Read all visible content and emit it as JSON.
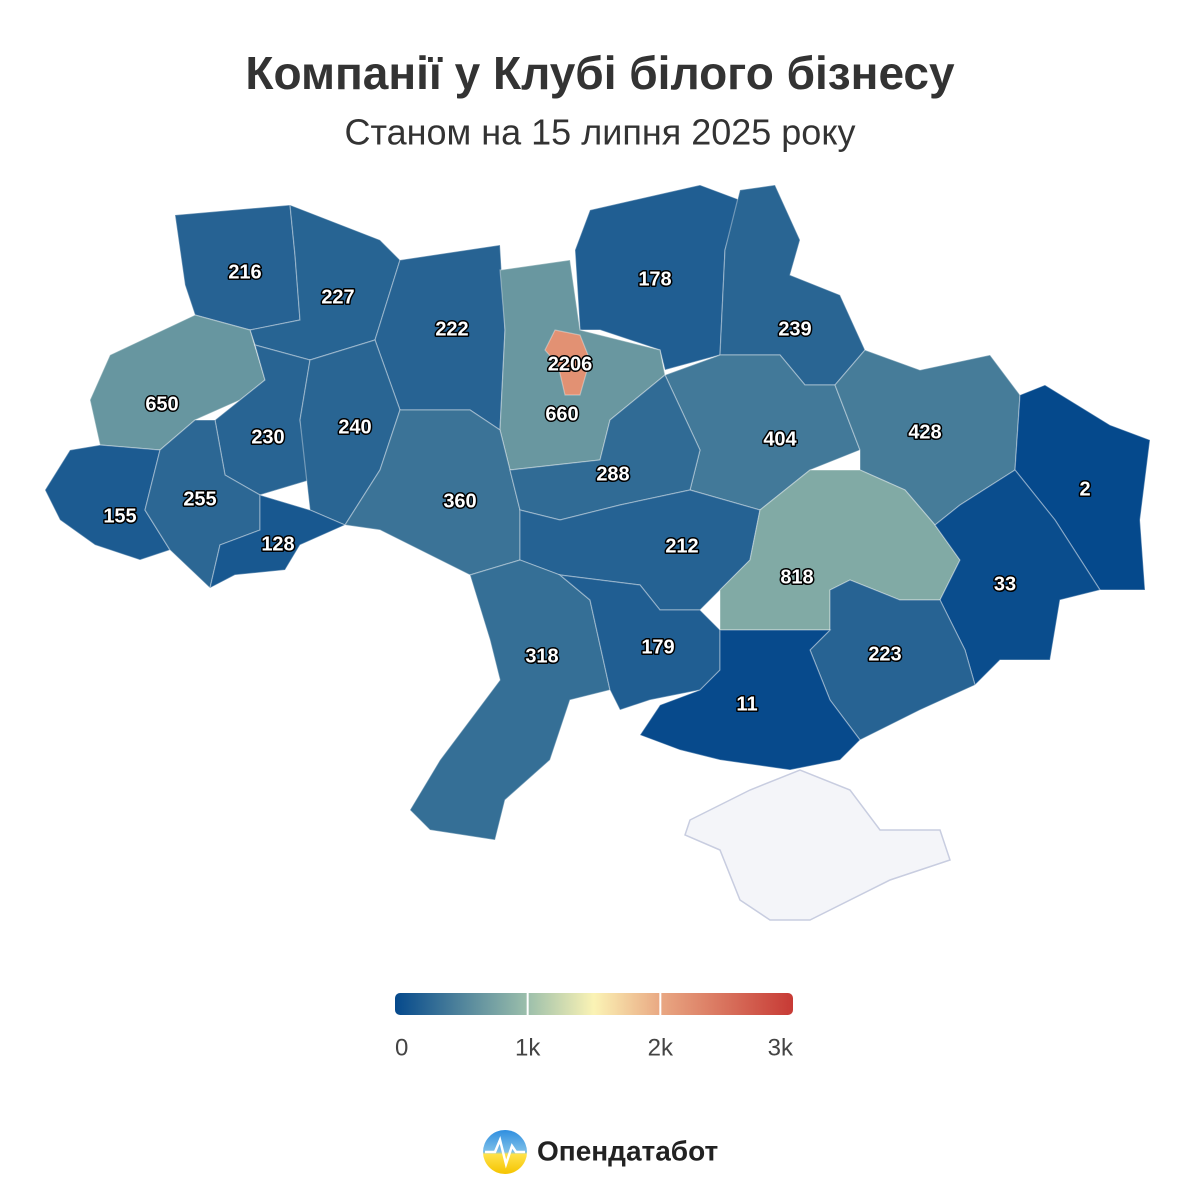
{
  "chart_data": {
    "type": "choropleth",
    "title": "Компанії у Клубі білого бізнесу",
    "subtitle": "Станом на 15 липня 2025 року",
    "values": [
      216,
      227,
      222,
      178,
      239,
      2206,
      660,
      650,
      230,
      240,
      404,
      428,
      2,
      155,
      255,
      128,
      360,
      288,
      212,
      818,
      33,
      318,
      179,
      223,
      11
    ],
    "colorscale": [
      {
        "value": 0,
        "color": "#05498c"
      },
      {
        "value": 1000,
        "color": "#9cbfab"
      },
      {
        "value": 1500,
        "color": "#fbf3b5"
      },
      {
        "value": 2000,
        "color": "#e9a883"
      },
      {
        "value": 3000,
        "color": "#c73a35"
      }
    ],
    "clim": [
      0,
      3000
    ],
    "cticks": [
      0,
      {
        "value": 1000,
        "label": "1k"
      },
      {
        "value": 2000,
        "label": "2k"
      },
      {
        "value": 3000,
        "label": "3k"
      }
    ]
  },
  "logo": {
    "text": "Опендатабот"
  }
}
